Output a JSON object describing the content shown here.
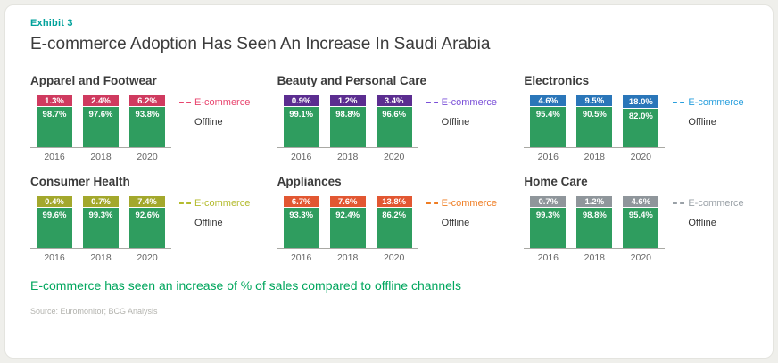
{
  "page": {
    "exhibit_label": "Exhibit 3",
    "title": "E-commerce Adoption Has Seen An Increase In Saudi Arabia",
    "takeaway": "E-commerce has seen an increase of % of sales compared to offline channels",
    "source": "Source: Euromonitor; BCG Analysis"
  },
  "colors": {
    "offline_bar": "#2f9d5f",
    "exhibit_label": "#00a19b",
    "takeaway_text": "#00a65d",
    "axis_line": "#a9a9a4"
  },
  "chart_data": [
    {
      "type": "bar",
      "title": "Apparel and Footwear",
      "categories": [
        "2016",
        "2018",
        "2020"
      ],
      "series": [
        {
          "name": "E-commerce",
          "values": [
            1.3,
            2.4,
            6.2
          ]
        },
        {
          "name": "Offline",
          "values": [
            98.7,
            97.6,
            93.8
          ]
        }
      ],
      "unit": "%",
      "ylim": [
        0,
        100
      ],
      "legend_position": "right",
      "color": "#cf3a5f",
      "legend_color": "#e8446e"
    },
    {
      "type": "bar",
      "title": "Beauty and Personal Care",
      "categories": [
        "2016",
        "2018",
        "2020"
      ],
      "series": [
        {
          "name": "E-commerce",
          "values": [
            0.9,
            1.2,
            3.4
          ]
        },
        {
          "name": "Offline",
          "values": [
            99.1,
            98.8,
            96.6
          ]
        }
      ],
      "unit": "%",
      "ylim": [
        0,
        100
      ],
      "legend_position": "right",
      "color": "#5b2d90",
      "legend_color": "#7a4fd8"
    },
    {
      "type": "bar",
      "title": "Electronics",
      "categories": [
        "2016",
        "2018",
        "2020"
      ],
      "series": [
        {
          "name": "E-commerce",
          "values": [
            4.6,
            9.5,
            18.0
          ]
        },
        {
          "name": "Offline",
          "values": [
            95.4,
            90.5,
            82.0
          ]
        }
      ],
      "unit": "%",
      "ylim": [
        0,
        100
      ],
      "legend_position": "right",
      "color": "#2a76b9",
      "legend_color": "#299fdd"
    },
    {
      "type": "bar",
      "title": "Consumer Health",
      "categories": [
        "2016",
        "2018",
        "2020"
      ],
      "series": [
        {
          "name": "E-commerce",
          "values": [
            0.4,
            0.7,
            7.4
          ]
        },
        {
          "name": "Offline",
          "values": [
            99.6,
            99.3,
            92.6
          ]
        }
      ],
      "unit": "%",
      "ylim": [
        0,
        100
      ],
      "legend_position": "right",
      "color": "#a3a82c",
      "legend_color": "#b4bb2e"
    },
    {
      "type": "bar",
      "title": "Appliances",
      "categories": [
        "2016",
        "2018",
        "2020"
      ],
      "series": [
        {
          "name": "E-commerce",
          "values": [
            6.7,
            7.6,
            13.8
          ]
        },
        {
          "name": "Offline",
          "values": [
            93.3,
            92.4,
            86.2
          ]
        }
      ],
      "unit": "%",
      "ylim": [
        0,
        100
      ],
      "legend_position": "right",
      "color": "#e25732",
      "legend_color": "#ef7d23"
    },
    {
      "type": "bar",
      "title": "Home Care",
      "categories": [
        "2016",
        "2018",
        "2020"
      ],
      "series": [
        {
          "name": "E-commerce",
          "values": [
            0.7,
            1.2,
            4.6
          ]
        },
        {
          "name": "Offline",
          "values": [
            99.3,
            98.8,
            95.4
          ]
        }
      ],
      "unit": "%",
      "ylim": [
        0,
        100
      ],
      "legend_position": "right",
      "color": "#8f969b",
      "legend_color": "#9aa1a7"
    }
  ]
}
